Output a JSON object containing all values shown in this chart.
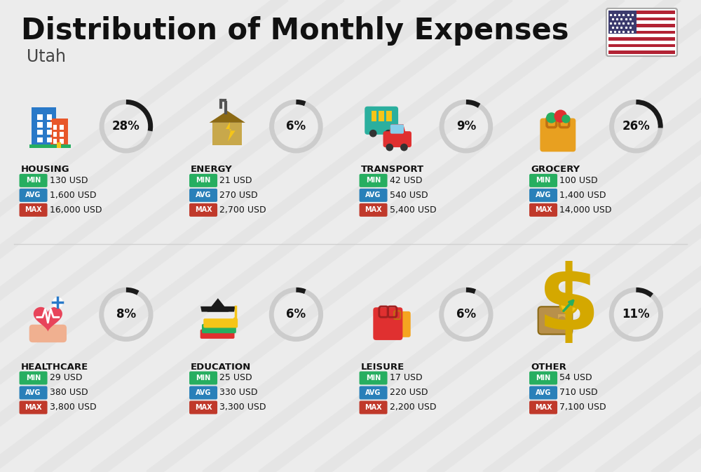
{
  "title": "Distribution of Monthly Expenses",
  "subtitle": "Utah",
  "background_color": "#ececec",
  "categories": [
    {
      "name": "HOUSING",
      "percent": 28,
      "min_val": "130 USD",
      "avg_val": "1,600 USD",
      "max_val": "16,000 USD",
      "row": 0,
      "col": 0,
      "icon_color": "#2979C8"
    },
    {
      "name": "ENERGY",
      "percent": 6,
      "min_val": "21 USD",
      "avg_val": "270 USD",
      "max_val": "2,700 USD",
      "row": 0,
      "col": 1,
      "icon_color": "#F5C518"
    },
    {
      "name": "TRANSPORT",
      "percent": 9,
      "min_val": "42 USD",
      "avg_val": "540 USD",
      "max_val": "5,400 USD",
      "row": 0,
      "col": 2,
      "icon_color": "#2BAF9E"
    },
    {
      "name": "GROCERY",
      "percent": 26,
      "min_val": "100 USD",
      "avg_val": "1,400 USD",
      "max_val": "14,000 USD",
      "row": 0,
      "col": 3,
      "icon_color": "#E8A020"
    },
    {
      "name": "HEALTHCARE",
      "percent": 8,
      "min_val": "29 USD",
      "avg_val": "380 USD",
      "max_val": "3,800 USD",
      "row": 1,
      "col": 0,
      "icon_color": "#E8445A"
    },
    {
      "name": "EDUCATION",
      "percent": 6,
      "min_val": "25 USD",
      "avg_val": "330 USD",
      "max_val": "3,300 USD",
      "row": 1,
      "col": 1,
      "icon_color": "#E05C20"
    },
    {
      "name": "LEISURE",
      "percent": 6,
      "min_val": "17 USD",
      "avg_val": "220 USD",
      "max_val": "2,200 USD",
      "row": 1,
      "col": 2,
      "icon_color": "#E03030"
    },
    {
      "name": "OTHER",
      "percent": 11,
      "min_val": "54 USD",
      "avg_val": "710 USD",
      "max_val": "7,100 USD",
      "row": 1,
      "col": 3,
      "icon_color": "#B8904A"
    }
  ],
  "min_color": "#27AE60",
  "avg_color": "#2980B9",
  "max_color": "#C0392B",
  "arc_dark": "#1a1a1a",
  "arc_light": "#cccccc",
  "stripe_color": "#d8d8d8",
  "title_color": "#111111",
  "subtitle_color": "#444444",
  "value_color": "#111111",
  "cell_bg": "#f8f8f8"
}
